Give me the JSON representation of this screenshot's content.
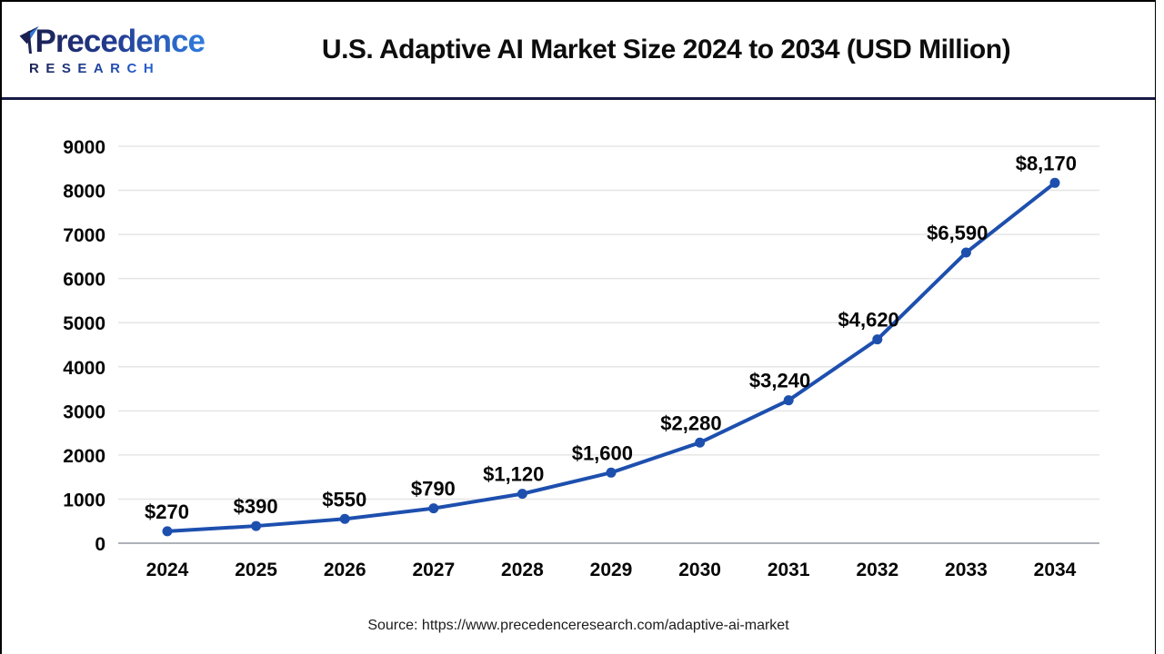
{
  "header": {
    "logo": {
      "name": "Precedence",
      "tagline": "RESEARCH"
    },
    "title": "U.S. Adaptive AI Market Size 2024 to 2034 (USD Million)"
  },
  "chart_data": {
    "type": "line",
    "title": "U.S. Adaptive AI Market Size 2024 to 2034 (USD Million)",
    "categories": [
      "2024",
      "2025",
      "2026",
      "2027",
      "2028",
      "2029",
      "2030",
      "2031",
      "2032",
      "2033",
      "2034"
    ],
    "series": [
      {
        "name": "U.S. Adaptive AI Market Size (USD Million)",
        "values": [
          270,
          390,
          550,
          790,
          1120,
          1600,
          2280,
          3240,
          4620,
          6590,
          8170
        ]
      }
    ],
    "point_labels": [
      "$270",
      "$390",
      "$550",
      "$790",
      "$1,120",
      "$1,600",
      "$2,280",
      "$3,240",
      "$4,620",
      "$6,590",
      "$8,170"
    ],
    "xlabel": "",
    "ylabel": "",
    "ylim": [
      0,
      9000
    ],
    "yticks": [
      0,
      1000,
      2000,
      3000,
      4000,
      5000,
      6000,
      7000,
      8000,
      9000
    ],
    "grid": true,
    "legend": "none",
    "line_color": "#1d4fae",
    "marker": "circle"
  },
  "footer": {
    "source": "Source: https://www.precedenceresearch.com/adaptive-ai-market"
  },
  "colors": {
    "divider": "#161b44",
    "line": "#1d4fae",
    "grid": "#e5e5e5",
    "zero_axis": "#aeb2b8",
    "logo_dark": "#1b2153",
    "logo_blue": "#2f7de0"
  }
}
